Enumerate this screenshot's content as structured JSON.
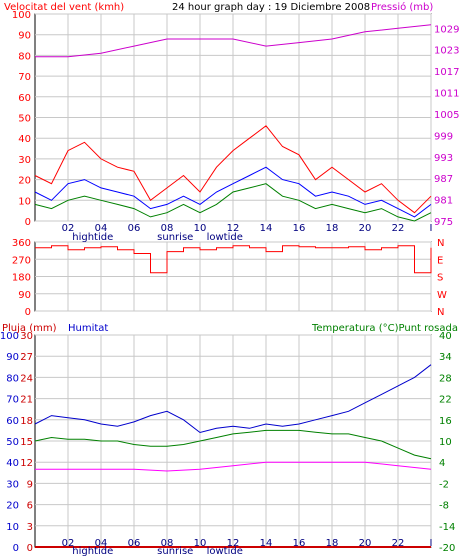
{
  "header": {
    "wind_label": "Velocitat del vent (kmh)",
    "title": "24 hour graph day : 19 Diciembre 2008",
    "pressure_label": "Pressió (mb)"
  },
  "labels": {
    "rain": "Pluja (mm)",
    "humidity": "Humitat",
    "temp_dew": "Temperatura (°C)Punt rosada"
  },
  "colors": {
    "wind_gust": "#ff0000",
    "wind_avg": "#0000ff",
    "wind_low": "#008000",
    "pressure": "#cc00cc",
    "direction": "#ff0000",
    "humidity": "#0000cc",
    "temperature": "#008000",
    "dewpoint": "#ff00ff",
    "rain": "#cc0000",
    "grid": "#c8c8c8"
  },
  "chart_data": [
    {
      "type": "line",
      "name": "wind-pressure",
      "x_ticks": [
        "02",
        "04",
        "06",
        "08",
        "10",
        "12",
        "14",
        "16",
        "18",
        "20",
        "22",
        "I"
      ],
      "x_annotations": [
        "hightide",
        "sunrise",
        "lowtide"
      ],
      "y_left": {
        "label": "Velocitat del vent (kmh)",
        "ticks": [
          0,
          10,
          20,
          30,
          40,
          50,
          60,
          70,
          80,
          90,
          100
        ],
        "range": [
          0,
          100
        ]
      },
      "y_right": {
        "label": "Pressió (mb)",
        "ticks": [
          975,
          981,
          987,
          993,
          999,
          1005,
          1011,
          1017,
          1023,
          1029
        ],
        "range": [
          975,
          1033
        ]
      },
      "series": [
        {
          "role": "gust",
          "x": [
            0,
            1,
            2,
            3,
            4,
            5,
            6,
            7,
            8,
            9,
            10,
            11,
            12,
            13,
            14,
            15,
            16,
            17,
            18,
            19,
            20,
            21,
            22,
            23,
            24
          ],
          "values": [
            22,
            18,
            34,
            38,
            30,
            26,
            24,
            10,
            16,
            22,
            14,
            26,
            34,
            40,
            46,
            36,
            32,
            20,
            26,
            20,
            14,
            18,
            10,
            4,
            12
          ]
        },
        {
          "role": "average",
          "x": [
            0,
            1,
            2,
            3,
            4,
            5,
            6,
            7,
            8,
            9,
            10,
            11,
            12,
            13,
            14,
            15,
            16,
            17,
            18,
            19,
            20,
            21,
            22,
            23,
            24
          ],
          "values": [
            14,
            10,
            18,
            20,
            16,
            14,
            12,
            6,
            8,
            12,
            8,
            14,
            18,
            22,
            26,
            20,
            18,
            12,
            14,
            12,
            8,
            10,
            6,
            2,
            8
          ]
        },
        {
          "role": "low",
          "x": [
            0,
            1,
            2,
            3,
            4,
            5,
            6,
            7,
            8,
            9,
            10,
            11,
            12,
            13,
            14,
            15,
            16,
            17,
            18,
            19,
            20,
            21,
            22,
            23,
            24
          ],
          "values": [
            8,
            6,
            10,
            12,
            10,
            8,
            6,
            2,
            4,
            8,
            4,
            8,
            14,
            16,
            18,
            12,
            10,
            6,
            8,
            6,
            4,
            6,
            2,
            0,
            4
          ]
        },
        {
          "role": "pressure",
          "axis": "right",
          "x": [
            0,
            2,
            4,
            6,
            8,
            10,
            12,
            14,
            16,
            18,
            20,
            22,
            24
          ],
          "values": [
            1021,
            1021,
            1022,
            1024,
            1026,
            1026,
            1026,
            1024,
            1025,
            1026,
            1028,
            1029,
            1030
          ]
        }
      ]
    },
    {
      "type": "line",
      "name": "wind-direction",
      "y_left": {
        "ticks": [
          0,
          90,
          180,
          270,
          360
        ],
        "range": [
          0,
          360
        ]
      },
      "y_right": {
        "ticks": [
          "N",
          "W",
          "S",
          "E",
          "N"
        ]
      },
      "series": [
        {
          "role": "direction",
          "x": [
            0,
            1,
            2,
            3,
            4,
            5,
            6,
            7,
            8,
            9,
            10,
            11,
            12,
            13,
            14,
            15,
            16,
            17,
            18,
            19,
            20,
            21,
            22,
            23,
            24
          ],
          "values": [
            330,
            340,
            320,
            330,
            335,
            320,
            300,
            200,
            310,
            330,
            320,
            330,
            340,
            330,
            310,
            340,
            335,
            330,
            330,
            335,
            320,
            330,
            340,
            200,
            330
          ]
        }
      ]
    },
    {
      "type": "line",
      "name": "rain-humidity-temperature",
      "x_ticks": [
        "02",
        "04",
        "06",
        "08",
        "10",
        "12",
        "14",
        "16",
        "18",
        "20",
        "22",
        "I"
      ],
      "x_annotations": [
        "hightide",
        "sunrise",
        "lowtide"
      ],
      "y_left_outer": {
        "label": "Pluja (mm)",
        "ticks": [
          0,
          3,
          6,
          9,
          12,
          15,
          18,
          21,
          24,
          27,
          30
        ],
        "range": [
          0,
          30
        ]
      },
      "y_left_inner": {
        "label": "Humitat",
        "ticks": [
          0,
          10,
          20,
          30,
          40,
          50,
          60,
          70,
          80,
          90,
          100
        ],
        "range": [
          0,
          100
        ]
      },
      "y_right": {
        "label": "Temperatura (°C)Punt rosada",
        "ticks": [
          -20,
          -14,
          -8,
          -2,
          4,
          10,
          16,
          22,
          28,
          34,
          40
        ],
        "range": [
          -20,
          40
        ]
      },
      "series": [
        {
          "role": "humidity",
          "axis": "inner",
          "x": [
            0,
            1,
            2,
            3,
            4,
            5,
            6,
            7,
            8,
            9,
            10,
            11,
            12,
            13,
            14,
            15,
            16,
            17,
            18,
            19,
            20,
            21,
            22,
            23,
            24
          ],
          "values": [
            58,
            62,
            61,
            60,
            58,
            57,
            59,
            62,
            64,
            60,
            54,
            56,
            57,
            56,
            58,
            57,
            58,
            60,
            62,
            64,
            68,
            72,
            76,
            80,
            86
          ]
        },
        {
          "role": "temperature",
          "axis": "right",
          "x": [
            0,
            1,
            2,
            3,
            4,
            5,
            6,
            7,
            8,
            9,
            10,
            11,
            12,
            13,
            14,
            15,
            16,
            17,
            18,
            19,
            20,
            21,
            22,
            23,
            24
          ],
          "values": [
            10,
            11,
            10.5,
            10.5,
            10,
            10,
            9,
            8.5,
            8.5,
            9,
            10,
            11,
            12,
            12.5,
            13,
            13,
            13,
            12.5,
            12,
            12,
            11,
            10,
            8,
            6,
            5
          ]
        },
        {
          "role": "dewpoint",
          "axis": "right",
          "x": [
            0,
            2,
            4,
            6,
            8,
            10,
            12,
            14,
            16,
            18,
            20,
            22,
            24
          ],
          "values": [
            2,
            2,
            2,
            2,
            1.5,
            2,
            3,
            4,
            4,
            4,
            4,
            3,
            2
          ]
        },
        {
          "role": "rain",
          "axis": "outer",
          "x": [
            0,
            24
          ],
          "values": [
            0,
            0
          ]
        }
      ]
    }
  ]
}
